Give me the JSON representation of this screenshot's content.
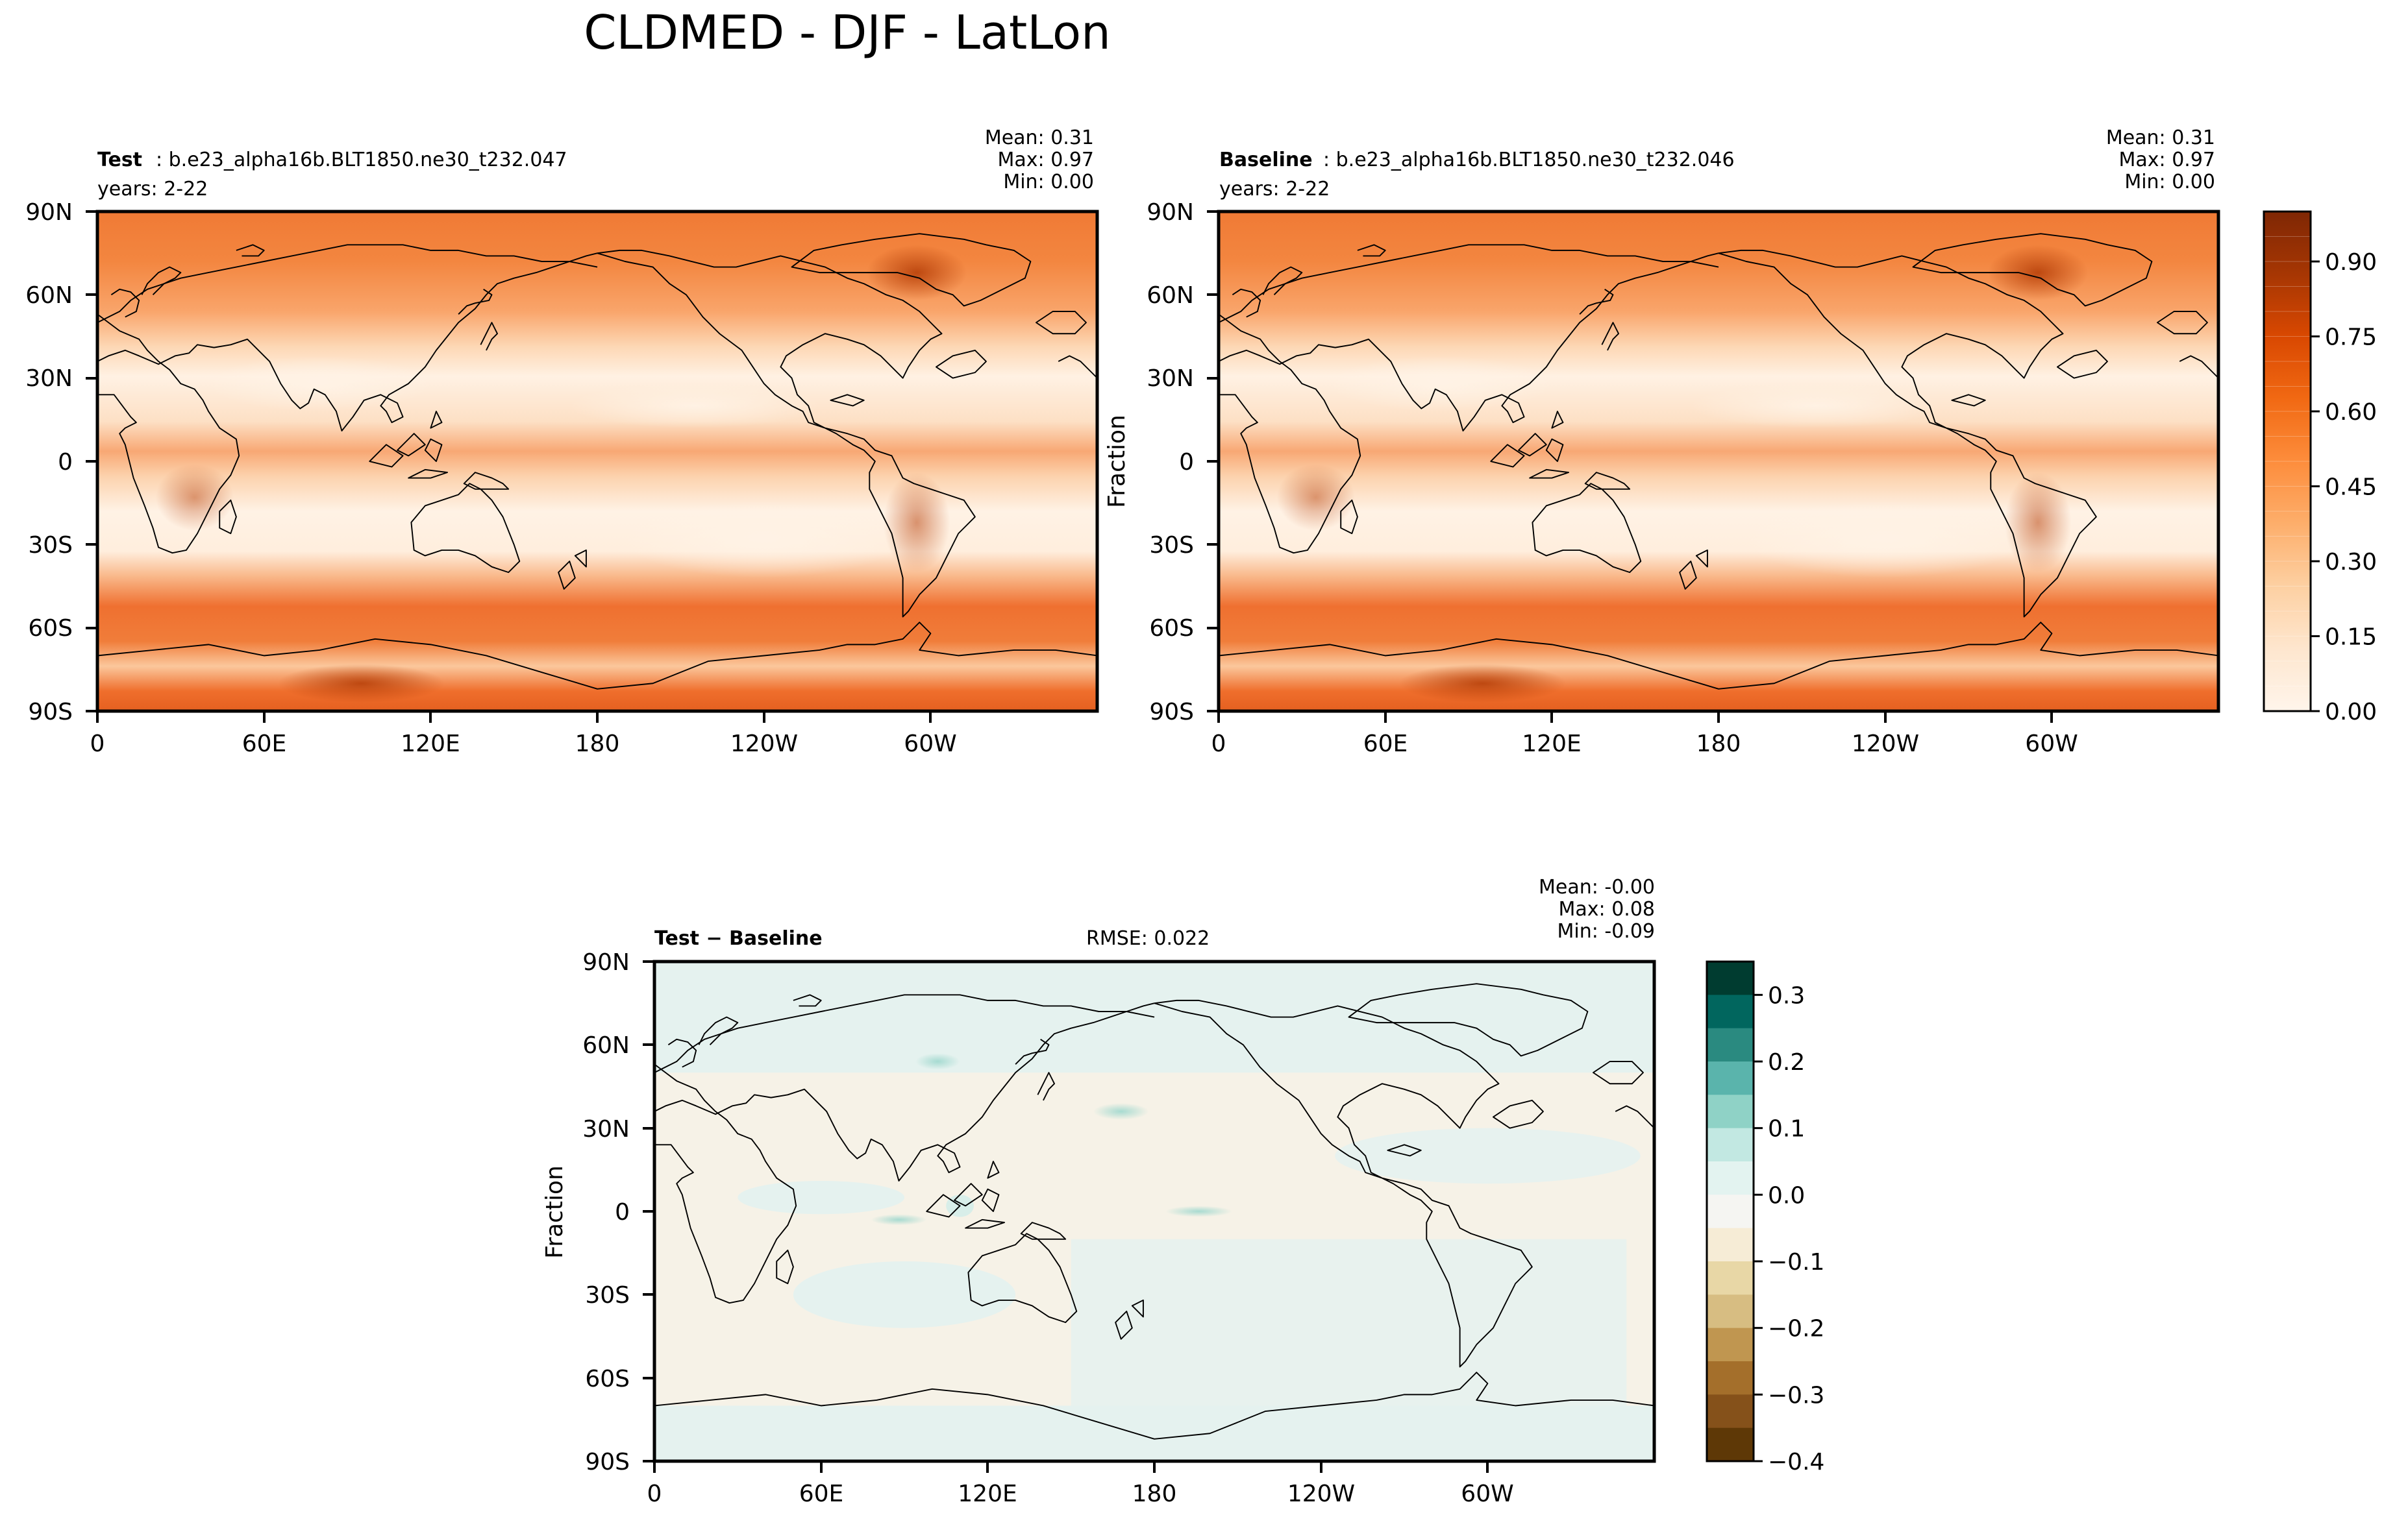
{
  "title": "CLDMED - DJF - LatLon",
  "chart_data": [
    {
      "type": "heatmap",
      "panel": "test",
      "label_bold": "Test",
      "label_rest": ": b.e23_alpha16b.BLT1850.ne30_t232.047",
      "years": "years: 2-22",
      "stats": {
        "mean": "Mean:  0.31",
        "max": "Max:  0.97",
        "min": "Min:  0.00"
      },
      "ylabel": "",
      "lat_ticks": [
        "90N",
        "60N",
        "30N",
        "0",
        "30S",
        "60S",
        "90S"
      ],
      "lon_ticks": [
        "0",
        "60E",
        "120E",
        "180",
        "120W",
        "60W"
      ],
      "xlim": [
        0,
        360
      ],
      "ylim": [
        -90,
        90
      ]
    },
    {
      "type": "heatmap",
      "panel": "baseline",
      "label_bold": "Baseline",
      "label_rest": ": b.e23_alpha16b.BLT1850.ne30_t232.046",
      "years": "years: 2-22",
      "stats": {
        "mean": "Mean:  0.31",
        "max": "Max:  0.97",
        "min": "Min:  0.00"
      },
      "ylabel": "Fraction",
      "lat_ticks": [
        "90N",
        "60N",
        "30N",
        "0",
        "30S",
        "60S",
        "90S"
      ],
      "lon_ticks": [
        "0",
        "60E",
        "120E",
        "180",
        "120W",
        "60W"
      ],
      "xlim": [
        0,
        360
      ],
      "ylim": [
        -90,
        90
      ],
      "colorbar": {
        "ticks": [
          "0.00",
          "0.15",
          "0.30",
          "0.45",
          "0.60",
          "0.75",
          "0.90"
        ],
        "tick_values": [
          0,
          0.15,
          0.3,
          0.45,
          0.6,
          0.75,
          0.9
        ],
        "range": [
          0,
          1.0
        ],
        "levels": 20,
        "colormap": "Oranges",
        "colors": [
          "#fff5eb",
          "#fee6ce",
          "#fdd0a2",
          "#fdae6b",
          "#fd8d3c",
          "#f16913",
          "#d94801",
          "#a63603",
          "#7f2704"
        ]
      }
    },
    {
      "type": "heatmap",
      "panel": "difference",
      "label_bold": "Test − Baseline",
      "rmse": "RMSE: 0.022",
      "stats": {
        "mean": "Mean: -0.00",
        "max": "Max:  0.08",
        "min": "Min: -0.09"
      },
      "ylabel": "Fraction",
      "lat_ticks": [
        "90N",
        "60N",
        "30N",
        "0",
        "30S",
        "60S",
        "90S"
      ],
      "lon_ticks": [
        "0",
        "60E",
        "120E",
        "180",
        "120W",
        "60W"
      ],
      "xlim": [
        0,
        360
      ],
      "ylim": [
        -90,
        90
      ],
      "colorbar": {
        "ticks": [
          "0.3",
          "0.2",
          "0.1",
          "0.0",
          "−0.1",
          "−0.2",
          "−0.3",
          "−0.4"
        ],
        "tick_values": [
          0.3,
          0.2,
          0.1,
          0.0,
          -0.1,
          -0.2,
          -0.3,
          -0.4
        ],
        "range": [
          -0.4,
          0.35
        ],
        "colormap": "BrBG",
        "bands": [
          "#003c30",
          "#01665e",
          "#2a8a80",
          "#5ab4ac",
          "#8fd2c6",
          "#c2e8e2",
          "#e3f3f0",
          "#f5f5f2",
          "#f6ecd6",
          "#e8d7a6",
          "#d7bd82",
          "#c09650",
          "#a46f2b",
          "#85511a",
          "#5e3806"
        ]
      }
    }
  ]
}
